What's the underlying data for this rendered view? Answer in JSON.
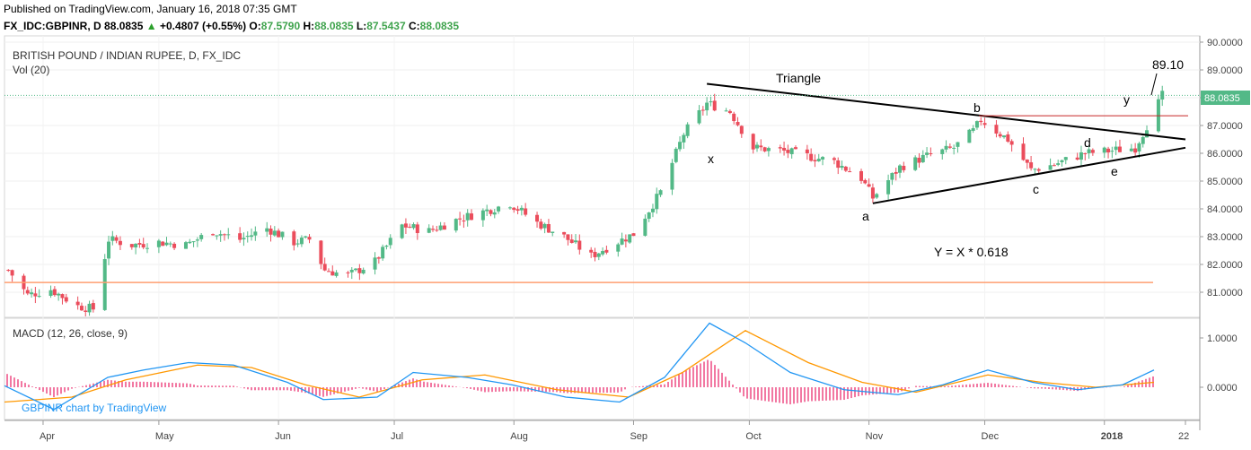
{
  "header": {
    "published": "Published on TradingView.com, January 16, 2018 07:35 GMT",
    "symbol": "FX_IDC:GBPINR, D",
    "last": "88.0835",
    "change": "+0.4807 (+0.55%)",
    "open_label": "O:",
    "open": "87.5790",
    "high_label": "H:",
    "high": "88.0835",
    "low_label": "L:",
    "low": "87.5437",
    "close_label": "C:",
    "close": "88.0835"
  },
  "pane_title": "BRITISH POUND / INDIAN RUPEE, D, FX_IDC",
  "vol_label": "Vol (20)",
  "macd_label": "MACD (12, 26, close, 9)",
  "watermark": "GBPINR chart by TradingView",
  "colors": {
    "up": "#53b987",
    "down": "#eb4d5c",
    "macd": "#2196f3",
    "signal": "#ff9800",
    "hist": "#e91e63",
    "support": "#ff9e70",
    "resist": "#c62828"
  },
  "chart_data": [
    {
      "type": "candlestick",
      "title": "BRITISH POUND / INDIAN RUPEE, D, FX_IDC",
      "x_ticks": [
        "Apr",
        "May",
        "Jun",
        "Jul",
        "Aug",
        "Sep",
        "Oct",
        "Nov",
        "Dec",
        "2018",
        "22"
      ],
      "y_ticks": [
        "90.0000",
        "89.0000",
        "88.0000",
        "87.0000",
        "86.0000",
        "85.0000",
        "84.0000",
        "83.0000",
        "82.0000",
        "81.0000"
      ],
      "ylim": [
        80.3,
        90.0
      ],
      "last_price": 88.0835,
      "close_path": [
        [
          "2017-03-23",
          81.8
        ],
        [
          "2017-03-28",
          80.9
        ],
        [
          "2017-04-03",
          81.1
        ],
        [
          "2017-04-10",
          80.5
        ],
        [
          "2017-04-14",
          80.4
        ],
        [
          "2017-04-18",
          82.9
        ],
        [
          "2017-04-24",
          82.7
        ],
        [
          "2017-05-01",
          82.8
        ],
        [
          "2017-05-08",
          82.7
        ],
        [
          "2017-05-15",
          83.2
        ],
        [
          "2017-05-22",
          82.9
        ],
        [
          "2017-05-29",
          83.3
        ],
        [
          "2017-06-05",
          82.8
        ],
        [
          "2017-06-09",
          82.9
        ],
        [
          "2017-06-13",
          81.8
        ],
        [
          "2017-06-19",
          81.6
        ],
        [
          "2017-06-26",
          82.1
        ],
        [
          "2017-07-03",
          83.4
        ],
        [
          "2017-07-10",
          83.2
        ],
        [
          "2017-07-17",
          83.6
        ],
        [
          "2017-07-24",
          83.9
        ],
        [
          "2017-07-31",
          84.2
        ],
        [
          "2017-08-07",
          83.5
        ],
        [
          "2017-08-14",
          83.0
        ],
        [
          "2017-08-21",
          82.3
        ],
        [
          "2017-08-25",
          82.6
        ],
        [
          "2017-09-01",
          83.1
        ],
        [
          "2017-09-08",
          84.6
        ],
        [
          "2017-09-14",
          86.7
        ],
        [
          "2017-09-20",
          87.8
        ],
        [
          "2017-09-26",
          87.5
        ],
        [
          "2017-10-02",
          86.2
        ],
        [
          "2017-10-09",
          86.1
        ],
        [
          "2017-10-16",
          85.9
        ],
        [
          "2017-10-23",
          85.7
        ],
        [
          "2017-10-30",
          85.1
        ],
        [
          "2017-11-02",
          84.4
        ],
        [
          "2017-11-09",
          85.5
        ],
        [
          "2017-11-16",
          85.9
        ],
        [
          "2017-11-23",
          86.2
        ],
        [
          "2017-11-28",
          86.8
        ],
        [
          "2017-11-30",
          87.2
        ],
        [
          "2017-12-07",
          86.5
        ],
        [
          "2017-12-13",
          85.4
        ],
        [
          "2017-12-19",
          85.6
        ],
        [
          "2017-12-27",
          86.0
        ],
        [
          "2018-01-03",
          86.1
        ],
        [
          "2018-01-09",
          86.2
        ],
        [
          "2018-01-12",
          87.0
        ],
        [
          "2018-01-16",
          88.08
        ]
      ],
      "annotations": [
        {
          "text": "Triangle"
        },
        {
          "text": "x"
        },
        {
          "text": "a"
        },
        {
          "text": "b"
        },
        {
          "text": "c"
        },
        {
          "text": "d"
        },
        {
          "text": "e"
        },
        {
          "text": "y"
        },
        {
          "text": "89.10"
        },
        {
          "text": "Y =  X * 0.618"
        }
      ],
      "lines": [
        {
          "name": "triangle-upper",
          "from": [
            "2017-09-20",
            88.5
          ],
          "to": [
            "2018-01-22",
            86.5
          ]
        },
        {
          "name": "triangle-lower",
          "from": [
            "2017-11-02",
            84.2
          ],
          "to": [
            "2018-01-22",
            86.2
          ]
        },
        {
          "name": "support",
          "value": 81.35
        },
        {
          "name": "resistance",
          "value": 87.35
        }
      ]
    },
    {
      "type": "line",
      "title": "MACD (12, 26, close, 9)",
      "y_ticks": [
        "1.0000",
        "0.0000"
      ],
      "ylim": [
        -0.6,
        1.3
      ]
    }
  ]
}
